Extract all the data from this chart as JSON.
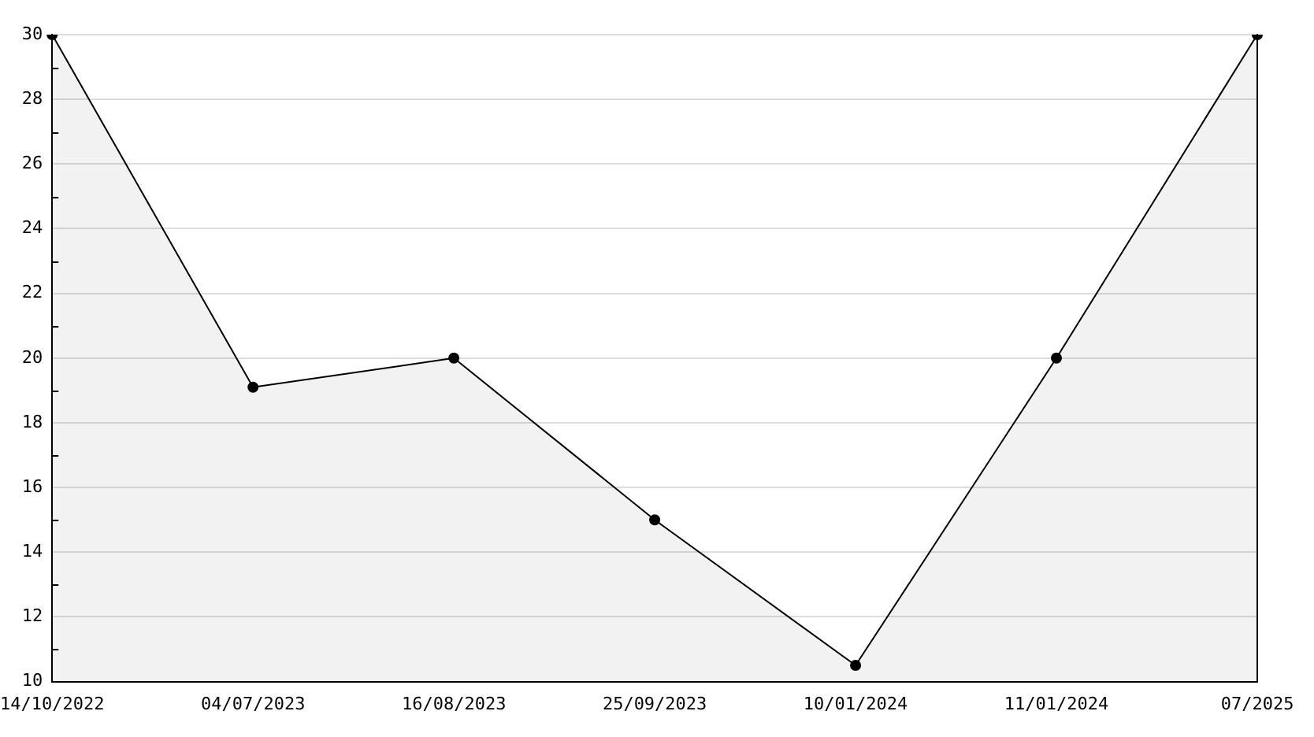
{
  "chart_data": {
    "type": "area",
    "categories": [
      "14/10/2022",
      "04/07/2023",
      "16/08/2023",
      "25/09/2023",
      "10/01/2024",
      "11/01/2024",
      "07/2025"
    ],
    "series": [
      {
        "color": "#000000",
        "values": [
          30,
          19.1,
          20,
          15,
          10.5,
          20,
          30
        ]
      }
    ],
    "ylim": [
      10,
      30
    ],
    "yticks": [
      10,
      12,
      14,
      16,
      18,
      20,
      22,
      24,
      26,
      28,
      30
    ],
    "grid": "y",
    "marker": "circle",
    "line_style": "solid",
    "legend": false
  }
}
